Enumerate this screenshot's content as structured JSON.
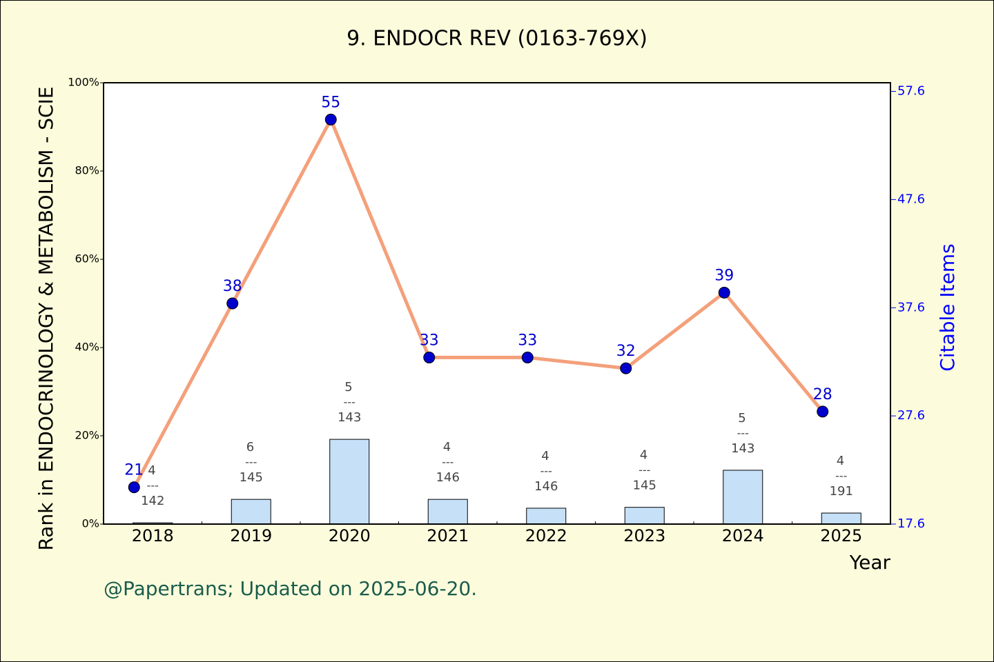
{
  "chart_data": {
    "type": "bar_line",
    "title": "9. ENDOCR REV (0163-769X)",
    "ylabel": "Rank in ENDOCRINOLOGY & METABOLISM - SCIE",
    "y2label": "Citable Items",
    "xlabel": "Year",
    "footnote": "@Papertrans; Updated on 2025-06-20.",
    "categories": [
      "2018",
      "2019",
      "2020",
      "2021",
      "2022",
      "2023",
      "2024",
      "2025"
    ],
    "ylim": [
      0,
      100
    ],
    "yticks": [
      {
        "value": 0,
        "label": "0%"
      },
      {
        "value": 20,
        "label": "20%"
      },
      {
        "value": 40,
        "label": "40%"
      },
      {
        "value": 60,
        "label": "60%"
      },
      {
        "value": 80,
        "label": "80%"
      },
      {
        "value": 100,
        "label": "100%"
      }
    ],
    "y2lim": [
      17.6,
      58.4
    ],
    "y2ticks": [
      17.6,
      27.6,
      37.6,
      47.6,
      57.6
    ],
    "series": [
      {
        "name": "Rank",
        "type": "bar",
        "color": "#c6e0f8",
        "values": [
          0.3,
          5.6,
          19.2,
          5.6,
          3.6,
          3.8,
          12.2,
          2.5
        ]
      },
      {
        "name": "Citable Items",
        "type": "line",
        "axis": "y2",
        "color": "#f4a07a",
        "marker_color": "#0000cc",
        "values": [
          21,
          38,
          55,
          33,
          33,
          32,
          39,
          28
        ]
      }
    ],
    "ranks": [
      4,
      6,
      5,
      4,
      4,
      4,
      5,
      4
    ],
    "totals": [
      142,
      145,
      143,
      146,
      146,
      145,
      143,
      191
    ],
    "rank_separator": "---"
  }
}
